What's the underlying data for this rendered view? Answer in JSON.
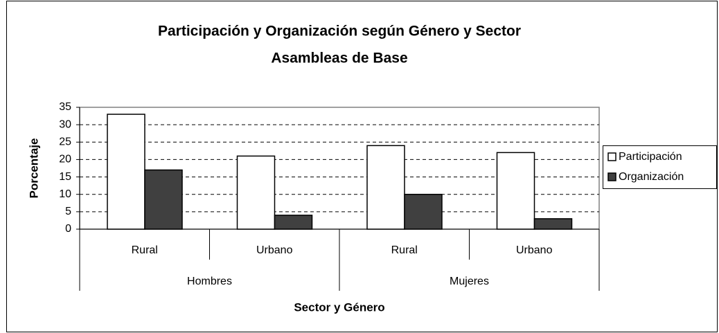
{
  "chart_data": {
    "type": "bar",
    "title": "Participación y Organización según Género y Sector",
    "subtitle": "Asambleas de Base",
    "x_label": "Sector y Género",
    "y_label": "Porcentaje",
    "categories": [
      "Rural",
      "Urbano",
      "Rural",
      "Urbano"
    ],
    "category_groups": [
      "Hombres",
      "Mujeres"
    ],
    "series": [
      {
        "name": "Participación",
        "color": "#ffffff",
        "values": [
          33,
          21,
          24,
          22
        ]
      },
      {
        "name": "Organización",
        "color": "#404040",
        "values": [
          17,
          4,
          10,
          3
        ]
      }
    ],
    "ylim": [
      0,
      35
    ],
    "yticks": [
      0,
      5,
      10,
      15,
      20,
      25,
      30,
      35
    ],
    "grid": true,
    "legend": "right"
  }
}
